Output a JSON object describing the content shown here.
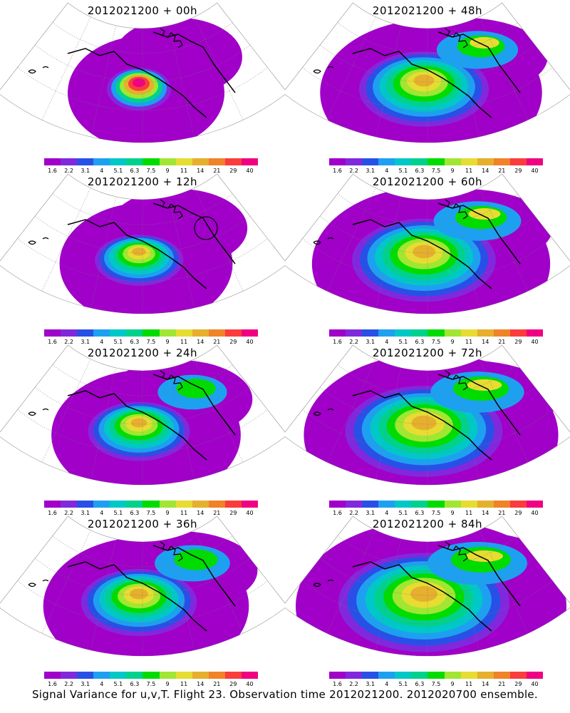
{
  "footer_caption": "Signal Variance for u,v,T. Flight 23. Observation time 2012021200. 2012020700 ensemble.",
  "colorbar": {
    "labels": [
      "1.6",
      "2.2",
      "3.1",
      "4",
      "5.1",
      "6.3",
      "7.5",
      "9",
      "11",
      "14",
      "21",
      "29",
      "40"
    ],
    "colors": [
      "#a000c8",
      "#8228dc",
      "#2850e6",
      "#1ea0f0",
      "#00c8c8",
      "#00d28c",
      "#00dc00",
      "#a0e632",
      "#e6dc32",
      "#e6af2d",
      "#f08228",
      "#fa3c3c",
      "#f00082"
    ]
  },
  "panels": [
    {
      "title": "2012021200 + 00h",
      "lead_hours": 0,
      "col": 0,
      "row": 0
    },
    {
      "title": "2012021200 + 48h",
      "lead_hours": 48,
      "col": 1,
      "row": 0
    },
    {
      "title": "2012021200 + 12h",
      "lead_hours": 12,
      "col": 0,
      "row": 1
    },
    {
      "title": "2012021200 + 60h",
      "lead_hours": 60,
      "col": 1,
      "row": 1
    },
    {
      "title": "2012021200 + 24h",
      "lead_hours": 24,
      "col": 0,
      "row": 2
    },
    {
      "title": "2012021200 + 72h",
      "lead_hours": 72,
      "col": 1,
      "row": 2
    },
    {
      "title": "2012021200 + 36h",
      "lead_hours": 36,
      "col": 0,
      "row": 3
    },
    {
      "title": "2012021200 + 84h",
      "lead_hours": 84,
      "col": 1,
      "row": 3
    }
  ]
}
